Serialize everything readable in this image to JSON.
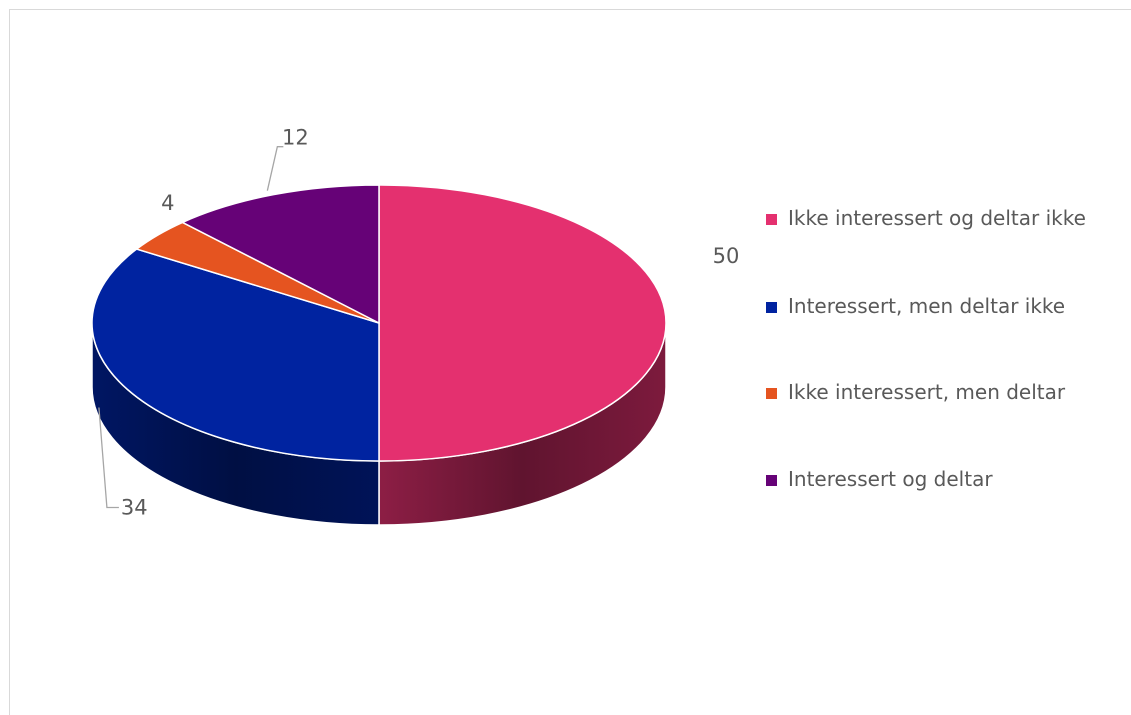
{
  "chart_data": {
    "type": "pie",
    "style": "3d",
    "title": "",
    "categories": [
      "Ikke interessert og deltar ikke",
      "Interessert, men deltar ikke",
      "Ikke interessert, men deltar",
      "Interessert og deltar"
    ],
    "values": [
      50,
      34,
      4,
      12
    ],
    "data_labels": [
      "50",
      "34",
      "4",
      "12"
    ],
    "colors": [
      "#e4306f",
      "#0023a0",
      "#e55420",
      "#660277"
    ],
    "legend_placement": "right"
  }
}
